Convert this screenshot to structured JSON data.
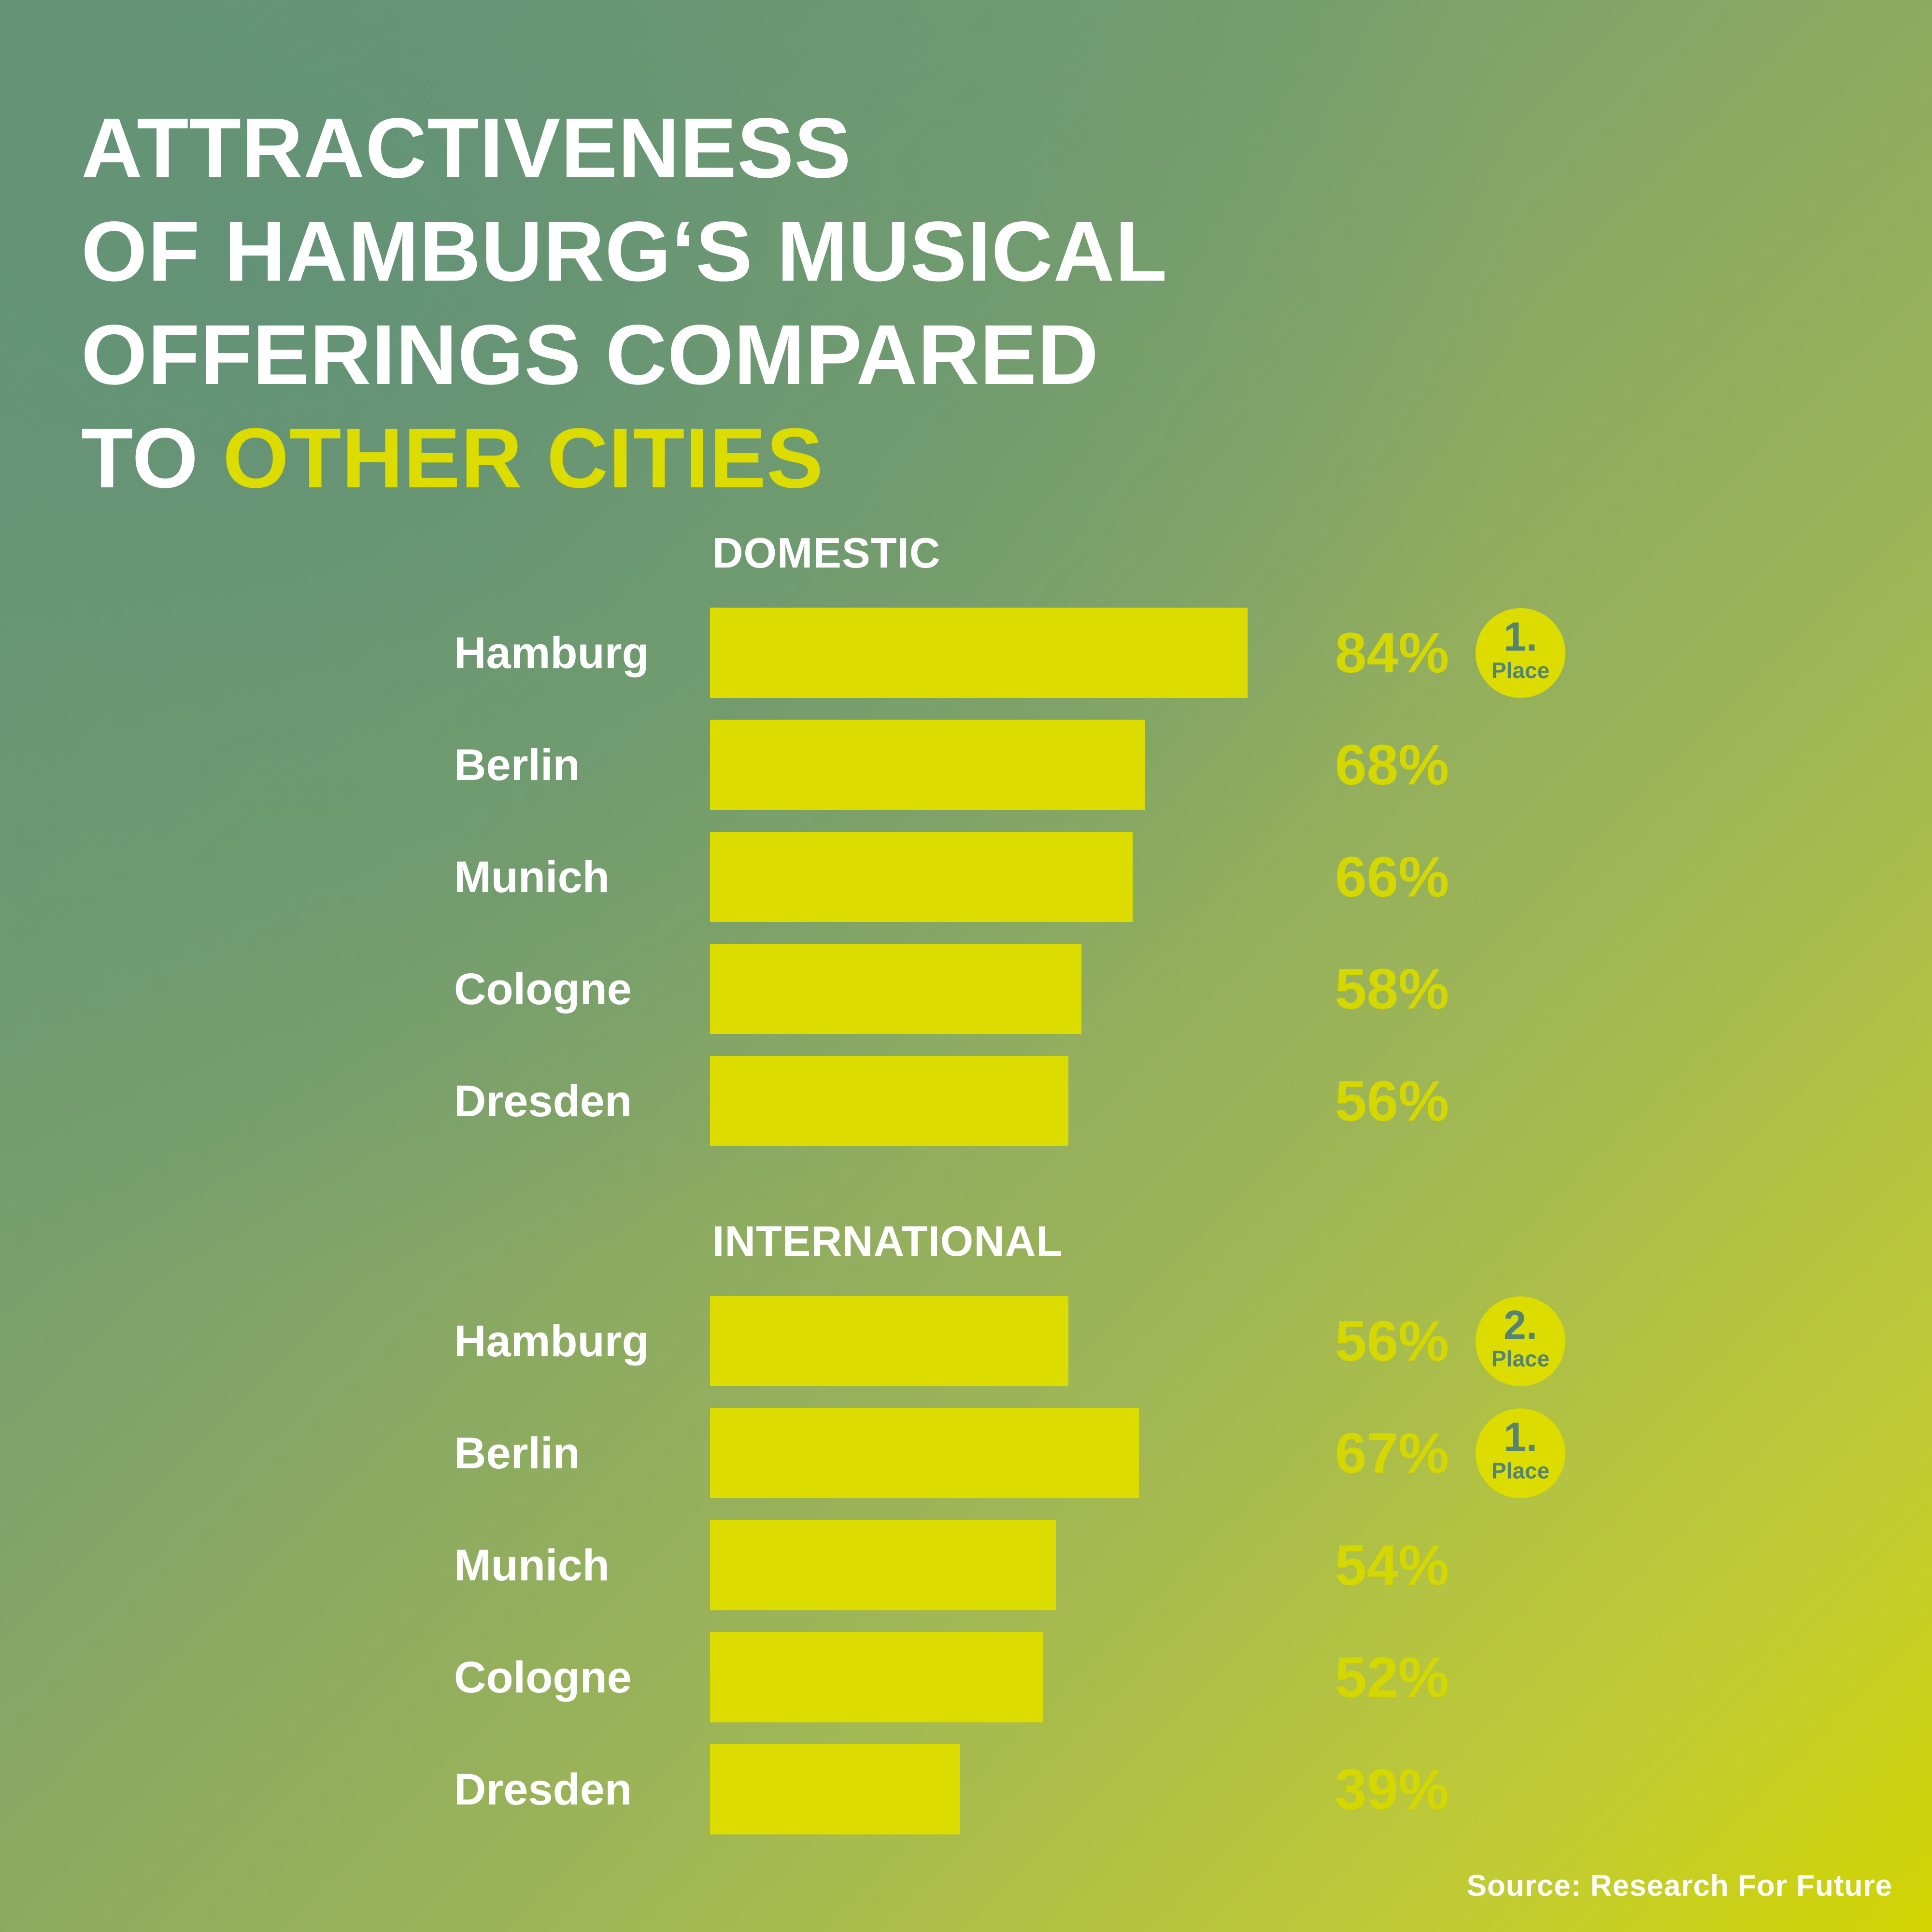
{
  "title": {
    "line1": "ATTRACTIVENESS",
    "line2": "OF HAMBURG‘S MUSICAL",
    "line3": "OFFERINGS COMPARED",
    "line4_prefix": "TO ",
    "line4_accent": "OTHER CITIES"
  },
  "source": "Source: Research For Future",
  "colors": {
    "bar": "#dcdc00",
    "value_text": "#d5d700",
    "badge_text": "#55856e",
    "text": "#ffffff"
  },
  "chart_data": [
    {
      "type": "bar",
      "orientation": "horizontal",
      "title": "DOMESTIC",
      "unit": "%",
      "categories": [
        "Hamburg",
        "Berlin",
        "Munich",
        "Cologne",
        "Dresden"
      ],
      "values": [
        84,
        68,
        66,
        58,
        56
      ],
      "value_labels": [
        "84%",
        "68%",
        "66%",
        "58%",
        "56%"
      ],
      "badges": [
        {
          "category": "Hamburg",
          "number": "1.",
          "label": "Place"
        }
      ]
    },
    {
      "type": "bar",
      "orientation": "horizontal",
      "title": "INTERNATIONAL",
      "unit": "%",
      "categories": [
        "Hamburg",
        "Berlin",
        "Munich",
        "Cologne",
        "Dresden"
      ],
      "values": [
        56,
        67,
        54,
        52,
        39
      ],
      "value_labels": [
        "56%",
        "67%",
        "54%",
        "52%",
        "39%"
      ],
      "badges": [
        {
          "category": "Hamburg",
          "number": "2.",
          "label": "Place"
        },
        {
          "category": "Berlin",
          "number": "1.",
          "label": "Place"
        }
      ]
    }
  ]
}
